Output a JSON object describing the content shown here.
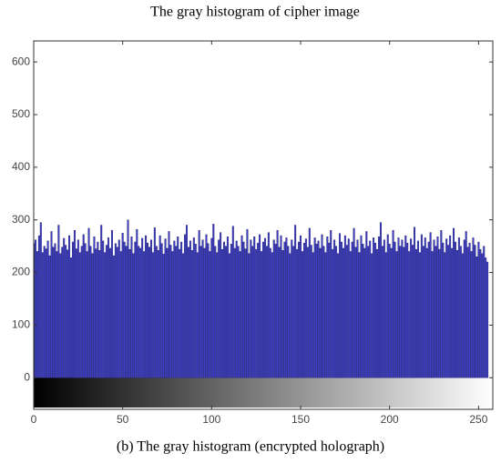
{
  "chart_data": {
    "type": "bar",
    "title": "The gray histogram of cipher image",
    "caption": "(b) The gray histogram (encrypted holograph)",
    "x": [
      0,
      1,
      2,
      3,
      4,
      5,
      6,
      7,
      8,
      9,
      10,
      11,
      12,
      13,
      14,
      15,
      16,
      17,
      18,
      19,
      20,
      21,
      22,
      23,
      24,
      25,
      26,
      27,
      28,
      29,
      30,
      31,
      32,
      33,
      34,
      35,
      36,
      37,
      38,
      39,
      40,
      41,
      42,
      43,
      44,
      45,
      46,
      47,
      48,
      49,
      50,
      51,
      52,
      53,
      54,
      55,
      56,
      57,
      58,
      59,
      60,
      61,
      62,
      63,
      64,
      65,
      66,
      67,
      68,
      69,
      70,
      71,
      72,
      73,
      74,
      75,
      76,
      77,
      78,
      79,
      80,
      81,
      82,
      83,
      84,
      85,
      86,
      87,
      88,
      89,
      90,
      91,
      92,
      93,
      94,
      95,
      96,
      97,
      98,
      99,
      100,
      101,
      102,
      103,
      104,
      105,
      106,
      107,
      108,
      109,
      110,
      111,
      112,
      113,
      114,
      115,
      116,
      117,
      118,
      119,
      120,
      121,
      122,
      123,
      124,
      125,
      126,
      127,
      128,
      129,
      130,
      131,
      132,
      133,
      134,
      135,
      136,
      137,
      138,
      139,
      140,
      141,
      142,
      143,
      144,
      145,
      146,
      147,
      148,
      149,
      150,
      151,
      152,
      153,
      154,
      155,
      156,
      157,
      158,
      159,
      160,
      161,
      162,
      163,
      164,
      165,
      166,
      167,
      168,
      169,
      170,
      171,
      172,
      173,
      174,
      175,
      176,
      177,
      178,
      179,
      180,
      181,
      182,
      183,
      184,
      185,
      186,
      187,
      188,
      189,
      190,
      191,
      192,
      193,
      194,
      195,
      196,
      197,
      198,
      199,
      200,
      201,
      202,
      203,
      204,
      205,
      206,
      207,
      208,
      209,
      210,
      211,
      212,
      213,
      214,
      215,
      216,
      217,
      218,
      219,
      220,
      221,
      222,
      223,
      224,
      225,
      226,
      227,
      228,
      229,
      230,
      231,
      232,
      233,
      234,
      235,
      236,
      237,
      238,
      239,
      240,
      241,
      242,
      243,
      244,
      245,
      246,
      247,
      248,
      249,
      250,
      251,
      252,
      253,
      254,
      255
    ],
    "values": [
      255,
      262,
      240,
      270,
      295,
      238,
      250,
      245,
      260,
      232,
      278,
      248,
      255,
      240,
      290,
      236,
      248,
      265,
      252,
      243,
      270,
      228,
      258,
      280,
      245,
      262,
      238,
      250,
      272,
      255,
      240,
      284,
      250,
      236,
      268,
      245,
      258,
      242,
      290,
      260,
      238,
      252,
      266,
      246,
      280,
      232,
      255,
      248,
      262,
      240,
      275,
      258,
      250,
      300,
      244,
      268,
      236,
      258,
      282,
      250,
      246,
      265,
      240,
      270,
      256,
      248,
      262,
      238,
      285,
      250,
      242,
      270,
      255,
      235,
      264,
      246,
      278,
      252,
      240,
      260,
      250,
      268,
      244,
      258,
      236,
      272,
      290,
      248,
      260,
      242,
      266,
      254,
      238,
      280,
      250,
      262,
      246,
      272,
      255,
      240,
      265,
      292,
      250,
      238,
      262,
      276,
      244,
      258,
      250,
      268,
      236,
      254,
      288,
      246,
      260,
      250,
      240,
      270,
      258,
      245,
      282,
      236,
      262,
      250,
      268,
      244,
      256,
      272,
      240,
      258,
      265,
      250,
      276,
      246,
      238,
      262,
      254,
      280,
      248,
      270,
      242,
      258,
      266,
      250,
      236,
      262,
      250,
      290,
      244,
      258,
      270,
      240,
      256,
      264,
      248,
      284,
      252,
      238,
      266,
      254,
      260,
      246,
      272,
      250,
      238,
      268,
      256,
      280,
      244,
      262,
      250,
      236,
      274,
      258,
      246,
      270,
      252,
      264,
      240,
      258,
      284,
      248,
      262,
      238,
      270,
      254,
      246,
      278,
      250,
      260,
      236,
      266,
      256,
      244,
      268,
      295,
      250,
      262,
      238,
      272,
      254,
      246,
      280,
      258,
      240,
      266,
      250,
      262,
      248,
      270,
      256,
      240,
      264,
      252,
      286,
      244,
      260,
      238,
      272,
      250,
      266,
      246,
      258,
      276,
      240,
      262,
      250,
      268,
      244,
      280,
      256,
      238,
      264,
      252,
      270,
      246,
      284,
      258,
      242,
      266,
      250,
      236,
      262,
      278,
      248,
      256,
      240,
      266,
      252,
      230,
      258,
      244,
      236,
      250,
      228,
      220
    ],
    "color": "#3f3fcc",
    "xlim": [
      0,
      258
    ],
    "xticks": [
      0,
      50,
      100,
      150,
      200,
      250
    ],
    "ylim": [
      -60,
      640
    ],
    "yticks": [
      0,
      100,
      200,
      300,
      400,
      500,
      600
    ]
  }
}
